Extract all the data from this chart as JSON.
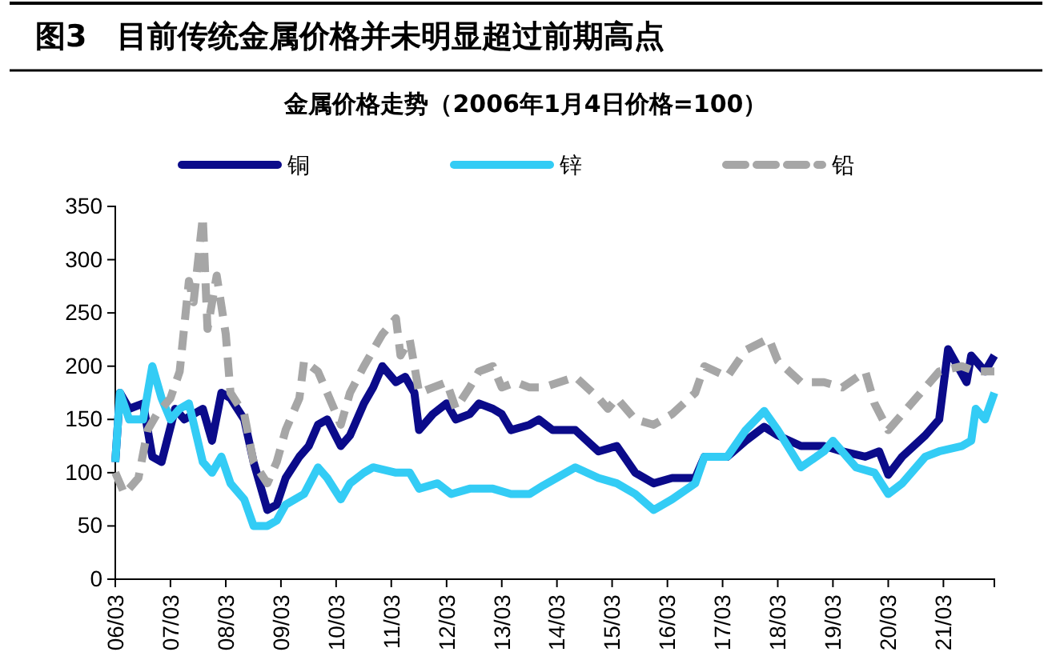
{
  "chart_data": {
    "type": "line",
    "title": "图3　目前传统金属价格并未明显超过前期高点",
    "subtitle": "金属价格走势（2006年1月4日价格=100）",
    "xlim": [
      "2006-03",
      "2022-02"
    ],
    "xticks": [
      {
        "value": "2006-03",
        "label": "06/03"
      },
      {
        "value": "2007-03",
        "label": "07/03"
      },
      {
        "value": "2008-03",
        "label": "08/03"
      },
      {
        "value": "2009-03",
        "label": "09/03"
      },
      {
        "value": "2010-03",
        "label": "10/03"
      },
      {
        "value": "2011-03",
        "label": "11/03"
      },
      {
        "value": "2012-03",
        "label": "12/03"
      },
      {
        "value": "2013-03",
        "label": "13/03"
      },
      {
        "value": "2014-03",
        "label": "14/03"
      },
      {
        "value": "2015-03",
        "label": "15/03"
      },
      {
        "value": "2016-03",
        "label": "16/03"
      },
      {
        "value": "2017-03",
        "label": "17/03"
      },
      {
        "value": "2018-03",
        "label": "18/03"
      },
      {
        "value": "2019-03",
        "label": "19/03"
      },
      {
        "value": "2020-03",
        "label": "20/03"
      },
      {
        "value": "2021-03",
        "label": "21/03"
      }
    ],
    "ylim": [
      0,
      350
    ],
    "yticks": [
      0,
      50,
      100,
      150,
      200,
      250,
      300,
      350
    ],
    "grid": false,
    "legend": "top",
    "line_style": "solid",
    "series": [
      {
        "name": "铜",
        "color": "#0b0b8a",
        "x": [
          "2006-03",
          "2006-04",
          "2006-06",
          "2006-09",
          "2006-11",
          "2007-01",
          "2007-04",
          "2007-06",
          "2007-10",
          "2007-12",
          "2008-02",
          "2008-04",
          "2008-07",
          "2008-09",
          "2008-12",
          "2009-02",
          "2009-04",
          "2009-07",
          "2009-09",
          "2009-11",
          "2010-01",
          "2010-04",
          "2010-06",
          "2010-09",
          "2010-11",
          "2011-01",
          "2011-04",
          "2011-06",
          "2011-08",
          "2011-09",
          "2011-12",
          "2012-03",
          "2012-05",
          "2012-08",
          "2012-10",
          "2013-01",
          "2013-03",
          "2013-05",
          "2013-09",
          "2013-11",
          "2014-02",
          "2014-07",
          "2014-12",
          "2015-04",
          "2015-08",
          "2015-12",
          "2016-04",
          "2016-09",
          "2016-11",
          "2017-04",
          "2017-08",
          "2017-12",
          "2018-03",
          "2018-08",
          "2019-01",
          "2019-05",
          "2019-10",
          "2020-01",
          "2020-03",
          "2020-06",
          "2020-11",
          "2021-02",
          "2021-04",
          "2021-08",
          "2021-09",
          "2021-12",
          "2022-02"
        ],
        "values": [
          110,
          175,
          160,
          165,
          115,
          110,
          160,
          150,
          160,
          130,
          175,
          170,
          150,
          110,
          65,
          70,
          95,
          115,
          125,
          145,
          150,
          125,
          135,
          165,
          180,
          200,
          185,
          190,
          175,
          140,
          155,
          165,
          150,
          155,
          165,
          160,
          155,
          140,
          145,
          150,
          140,
          140,
          120,
          125,
          100,
          90,
          95,
          95,
          115,
          115,
          130,
          143,
          135,
          125,
          125,
          120,
          115,
          120,
          98,
          115,
          135,
          150,
          216,
          185,
          210,
          195,
          210
        ]
      },
      {
        "name": "锌",
        "color": "#33ccf5",
        "x": [
          "2006-03",
          "2006-04",
          "2006-06",
          "2006-09",
          "2006-11",
          "2007-01",
          "2007-03",
          "2007-05",
          "2007-07",
          "2007-10",
          "2007-12",
          "2008-02",
          "2008-04",
          "2008-07",
          "2008-09",
          "2008-12",
          "2009-02",
          "2009-04",
          "2009-08",
          "2009-11",
          "2010-01",
          "2010-04",
          "2010-06",
          "2010-09",
          "2010-11",
          "2011-04",
          "2011-07",
          "2011-09",
          "2012-01",
          "2012-04",
          "2012-08",
          "2013-01",
          "2013-05",
          "2013-09",
          "2013-12",
          "2014-07",
          "2014-12",
          "2015-04",
          "2015-08",
          "2015-12",
          "2016-04",
          "2016-09",
          "2016-11",
          "2017-04",
          "2017-08",
          "2017-12",
          "2018-03",
          "2018-08",
          "2019-01",
          "2019-03",
          "2019-08",
          "2019-12",
          "2020-03",
          "2020-06",
          "2020-11",
          "2021-02",
          "2021-07",
          "2021-09",
          "2021-10",
          "2021-12",
          "2022-02"
        ],
        "values": [
          110,
          175,
          150,
          150,
          200,
          170,
          150,
          160,
          165,
          110,
          100,
          115,
          90,
          75,
          50,
          50,
          55,
          70,
          80,
          105,
          95,
          75,
          90,
          100,
          105,
          100,
          100,
          85,
          90,
          80,
          85,
          85,
          80,
          80,
          88,
          105,
          95,
          90,
          80,
          65,
          75,
          90,
          115,
          115,
          140,
          158,
          140,
          105,
          120,
          130,
          105,
          100,
          80,
          90,
          115,
          120,
          125,
          130,
          160,
          150,
          175
        ]
      },
      {
        "name": "铅",
        "color": "#a6a6a6",
        "line_style": "dashed",
        "x": [
          "2006-03",
          "2006-05",
          "2006-08",
          "2006-10",
          "2006-12",
          "2007-03",
          "2007-05",
          "2007-07",
          "2007-08",
          "2007-10",
          "2007-11",
          "2008-01",
          "2008-03",
          "2008-04",
          "2008-07",
          "2008-09",
          "2008-12",
          "2009-02",
          "2009-04",
          "2009-07",
          "2009-08",
          "2009-11",
          "2010-01",
          "2010-04",
          "2010-06",
          "2010-09",
          "2010-11",
          "2011-01",
          "2011-04",
          "2011-05",
          "2011-07",
          "2011-09",
          "2011-12",
          "2012-03",
          "2012-05",
          "2012-08",
          "2012-10",
          "2013-01",
          "2013-03",
          "2013-06",
          "2013-09",
          "2013-12",
          "2014-07",
          "2014-12",
          "2015-02",
          "2015-04",
          "2015-08",
          "2015-12",
          "2016-04",
          "2016-09",
          "2016-11",
          "2017-04",
          "2017-08",
          "2018-01",
          "2018-03",
          "2018-08",
          "2019-01",
          "2019-05",
          "2019-10",
          "2019-12",
          "2020-03",
          "2020-06",
          "2020-11",
          "2021-02",
          "2021-07",
          "2021-10",
          "2022-02"
        ],
        "values": [
          100,
          80,
          95,
          140,
          155,
          170,
          195,
          280,
          260,
          340,
          235,
          285,
          230,
          175,
          155,
          110,
          90,
          110,
          140,
          170,
          205,
          195,
          175,
          145,
          175,
          200,
          215,
          230,
          245,
          210,
          225,
          175,
          180,
          185,
          160,
          180,
          195,
          200,
          180,
          185,
          180,
          180,
          190,
          170,
          160,
          170,
          150,
          145,
          155,
          175,
          200,
          190,
          215,
          226,
          205,
          185,
          185,
          180,
          195,
          165,
          140,
          155,
          180,
          195,
          200,
          195,
          195
        ]
      }
    ]
  }
}
